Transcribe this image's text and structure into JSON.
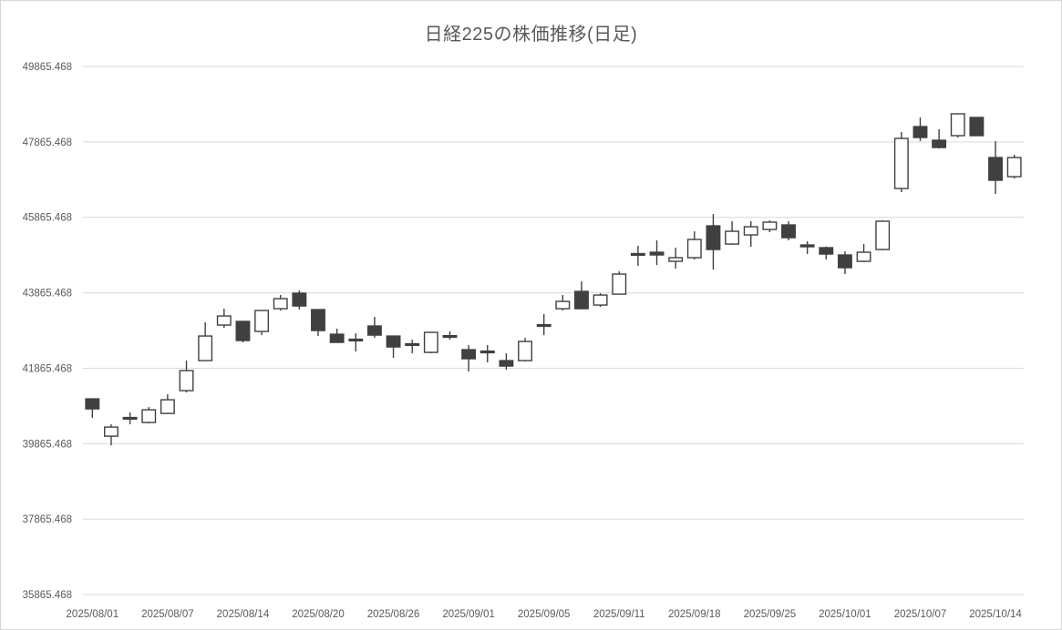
{
  "chart": {
    "title": "日経225の株価推移(日足)"
  },
  "chart_data": {
    "type": "candlestick",
    "title": "日経225の株価推移(日足)",
    "xlabel": "",
    "ylabel": "",
    "grid": true,
    "legend": false,
    "ylim": [
      35865.468,
      49865.468
    ],
    "y_tick_step": 2000,
    "y_tick_labels": [
      "49865.468",
      "47865.468",
      "45865.468",
      "43865.468",
      "41865.468",
      "39865.468",
      "37865.468",
      "35865.468"
    ],
    "x_tick_labels": [
      "2025/08/01",
      "2025/08/07",
      "2025/08/14",
      "2025/08/20",
      "2025/08/26",
      "2025/09/01",
      "2025/09/05",
      "2025/09/11",
      "2025/09/18",
      "2025/09/25",
      "2025/10/01",
      "2025/10/07",
      "2025/10/14"
    ],
    "x_tick_every": 4,
    "colors": {
      "up_fill": "#ffffff",
      "down_fill": "#404040",
      "stroke": "#404040",
      "gridline": "#d9d9d9",
      "label": "#595959",
      "title": "#595959",
      "background": "#ffffff",
      "frame": "#d6d6d6"
    },
    "candles": [
      {
        "date": "2025/08/01",
        "open": 41054,
        "high": 41060,
        "low": 40547,
        "close": 40788
      },
      {
        "date": "2025/08/04",
        "open": 40065,
        "high": 40379,
        "low": 39823,
        "close": 40306
      },
      {
        "date": "2025/08/05",
        "open": 40560,
        "high": 40693,
        "low": 40379,
        "close": 40535
      },
      {
        "date": "2025/08/06",
        "open": 40427,
        "high": 40836,
        "low": 40403,
        "close": 40764
      },
      {
        "date": "2025/08/07",
        "open": 40668,
        "high": 41175,
        "low": 40650,
        "close": 41030
      },
      {
        "date": "2025/08/08",
        "open": 41272,
        "high": 42068,
        "low": 41224,
        "close": 41803
      },
      {
        "date": "2025/08/12",
        "open": 42068,
        "high": 43082,
        "low": 42060,
        "close": 42720
      },
      {
        "date": "2025/08/13",
        "open": 43010,
        "high": 43444,
        "low": 42937,
        "close": 43251
      },
      {
        "date": "2025/08/14",
        "open": 43107,
        "high": 43115,
        "low": 42551,
        "close": 42600
      },
      {
        "date": "2025/08/15",
        "open": 42841,
        "high": 43405,
        "low": 42744,
        "close": 43396
      },
      {
        "date": "2025/08/18",
        "open": 43444,
        "high": 43806,
        "low": 43396,
        "close": 43710
      },
      {
        "date": "2025/08/19",
        "open": 43855,
        "high": 43927,
        "low": 43420,
        "close": 43516
      },
      {
        "date": "2025/08/20",
        "open": 43420,
        "high": 43430,
        "low": 42720,
        "close": 42865
      },
      {
        "date": "2025/08/21",
        "open": 42768,
        "high": 42913,
        "low": 42540,
        "close": 42551
      },
      {
        "date": "2025/08/22",
        "open": 42635,
        "high": 42792,
        "low": 42310,
        "close": 42610
      },
      {
        "date": "2025/08/25",
        "open": 42986,
        "high": 43227,
        "low": 42672,
        "close": 42744
      },
      {
        "date": "2025/08/26",
        "open": 42720,
        "high": 42730,
        "low": 42141,
        "close": 42430
      },
      {
        "date": "2025/08/27",
        "open": 42515,
        "high": 42623,
        "low": 42261,
        "close": 42490
      },
      {
        "date": "2025/08/28",
        "open": 42286,
        "high": 42825,
        "low": 42261,
        "close": 42817
      },
      {
        "date": "2025/08/29",
        "open": 42730,
        "high": 42841,
        "low": 42623,
        "close": 42710
      },
      {
        "date": "2025/09/01",
        "open": 42358,
        "high": 42479,
        "low": 41779,
        "close": 42117
      },
      {
        "date": "2025/09/02",
        "open": 42320,
        "high": 42479,
        "low": 42020,
        "close": 42300
      },
      {
        "date": "2025/09/03",
        "open": 42068,
        "high": 42261,
        "low": 41827,
        "close": 41923
      },
      {
        "date": "2025/09/04",
        "open": 42068,
        "high": 42672,
        "low": 42044,
        "close": 42575
      },
      {
        "date": "2025/09/05",
        "open": 43020,
        "high": 43299,
        "low": 42744,
        "close": 42995
      },
      {
        "date": "2025/09/08",
        "open": 43444,
        "high": 43806,
        "low": 43396,
        "close": 43637
      },
      {
        "date": "2025/09/09",
        "open": 43903,
        "high": 44169,
        "low": 43430,
        "close": 43444
      },
      {
        "date": "2025/09/10",
        "open": 43541,
        "high": 43855,
        "low": 43492,
        "close": 43806
      },
      {
        "date": "2025/09/11",
        "open": 43830,
        "high": 44434,
        "low": 43820,
        "close": 44362
      },
      {
        "date": "2025/09/12",
        "open": 44905,
        "high": 45110,
        "low": 44579,
        "close": 44880
      },
      {
        "date": "2025/09/16",
        "open": 44941,
        "high": 45255,
        "low": 44603,
        "close": 44869
      },
      {
        "date": "2025/09/17",
        "open": 44700,
        "high": 45062,
        "low": 44507,
        "close": 44796
      },
      {
        "date": "2025/09/18",
        "open": 44796,
        "high": 45496,
        "low": 44748,
        "close": 45279
      },
      {
        "date": "2025/09/19",
        "open": 45641,
        "high": 45955,
        "low": 44483,
        "close": 45013
      },
      {
        "date": "2025/09/22",
        "open": 45158,
        "high": 45762,
        "low": 45134,
        "close": 45496
      },
      {
        "date": "2025/09/24",
        "open": 45400,
        "high": 45762,
        "low": 45086,
        "close": 45617
      },
      {
        "date": "2025/09/25",
        "open": 45545,
        "high": 45786,
        "low": 45472,
        "close": 45738
      },
      {
        "date": "2025/09/26",
        "open": 45665,
        "high": 45762,
        "low": 45255,
        "close": 45327
      },
      {
        "date": "2025/09/29",
        "open": 45134,
        "high": 45231,
        "low": 44893,
        "close": 45086
      },
      {
        "date": "2025/09/30",
        "open": 45062,
        "high": 45090,
        "low": 44748,
        "close": 44893
      },
      {
        "date": "2025/10/01",
        "open": 44869,
        "high": 44965,
        "low": 44362,
        "close": 44531
      },
      {
        "date": "2025/10/02",
        "open": 44700,
        "high": 45158,
        "low": 44676,
        "close": 44941
      },
      {
        "date": "2025/10/03",
        "open": 45013,
        "high": 45786,
        "low": 44989,
        "close": 45762
      },
      {
        "date": "2025/10/06",
        "open": 46631,
        "high": 48127,
        "low": 46534,
        "close": 47958
      },
      {
        "date": "2025/10/07",
        "open": 48272,
        "high": 48514,
        "low": 47886,
        "close": 47982
      },
      {
        "date": "2025/10/08",
        "open": 47910,
        "high": 48200,
        "low": 47693,
        "close": 47717
      },
      {
        "date": "2025/10/09",
        "open": 48031,
        "high": 48620,
        "low": 47982,
        "close": 48610
      },
      {
        "date": "2025/10/10",
        "open": 48514,
        "high": 48520,
        "low": 48020,
        "close": 48031
      },
      {
        "date": "2025/10/14",
        "open": 47451,
        "high": 47886,
        "low": 46486,
        "close": 46848
      },
      {
        "date": "2025/10/15",
        "open": 46944,
        "high": 47524,
        "low": 46896,
        "close": 47451
      }
    ]
  }
}
